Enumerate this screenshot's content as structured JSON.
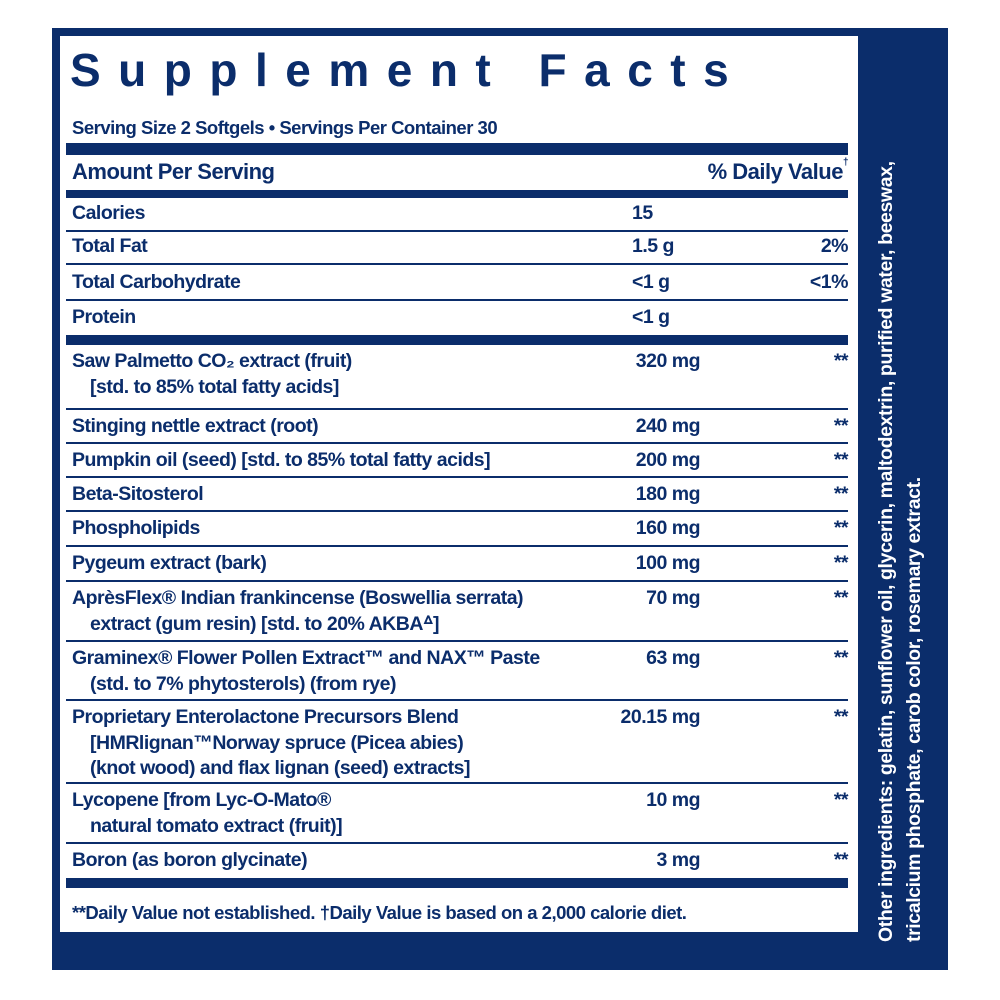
{
  "title": "Supplement Facts",
  "serving": "Serving Size 2 Softgels • Servings Per Container 30",
  "header": {
    "amount": "Amount Per Serving",
    "dv": "% Daily Value",
    "dv_mark": "†"
  },
  "macros": [
    {
      "name": "Calories",
      "amount": "15",
      "dv": ""
    },
    {
      "name": "Total Fat",
      "amount": "1.5 g",
      "dv": "2%"
    },
    {
      "name": "Total Carbohydrate",
      "amount": "<1 g",
      "dv": "<1%"
    },
    {
      "name": "Protein",
      "amount": "<1 g",
      "dv": ""
    }
  ],
  "ingredients": [
    {
      "lines": [
        "Saw Palmetto CO₂ extract (fruit)",
        "[std. to 85% total fatty acids]"
      ],
      "amount": "320 mg",
      "dv": "**"
    },
    {
      "lines": [
        "Stinging nettle extract (root)"
      ],
      "amount": "240 mg",
      "dv": "**"
    },
    {
      "lines": [
        "Pumpkin oil (seed) [std. to 85% total fatty acids]"
      ],
      "amount": "200 mg",
      "dv": "**"
    },
    {
      "lines": [
        "Beta-Sitosterol"
      ],
      "amount": "180 mg",
      "dv": "**"
    },
    {
      "lines": [
        "Phospholipids"
      ],
      "amount": "160 mg",
      "dv": "**"
    },
    {
      "lines": [
        "Pygeum extract (bark)"
      ],
      "amount": "100 mg",
      "dv": "**"
    },
    {
      "lines": [
        "AprèsFlex® Indian frankincense (Boswellia serrata)",
        "extract (gum resin) [std. to 20% AKBAᐞ]"
      ],
      "amount": "70 mg",
      "dv": "**"
    },
    {
      "lines": [
        "Graminex® Flower Pollen Extract™ and NAX™ Paste",
        "(std. to 7% phytosterols) (from rye)"
      ],
      "amount": "63 mg",
      "dv": "**"
    },
    {
      "lines": [
        "Proprietary Enterolactone Precursors Blend",
        "[HMRlignan™Norway spruce (Picea abies)",
        "(knot wood) and flax lignan (seed) extracts]"
      ],
      "amount": "20.15 mg",
      "dv": "**"
    },
    {
      "lines": [
        "Lycopene [from Lyc-O-Mato®",
        "natural tomato extract (fruit)]"
      ],
      "amount": "10 mg",
      "dv": "**"
    },
    {
      "lines": [
        "Boron (as boron glycinate)"
      ],
      "amount": "3 mg",
      "dv": "**"
    }
  ],
  "footnote": "**Daily Value not established.  †Daily Value is based on a 2,000 calorie diet.",
  "other_ingredients": [
    "Other ingredients: gelatin, sunflower oil, glycerin, maltodextrin, purified water, beeswax,",
    "tricalcium phosphate, carob color, rosemary extract."
  ],
  "colors": {
    "navy": "#0b2d6b",
    "background": "#ffffff"
  }
}
